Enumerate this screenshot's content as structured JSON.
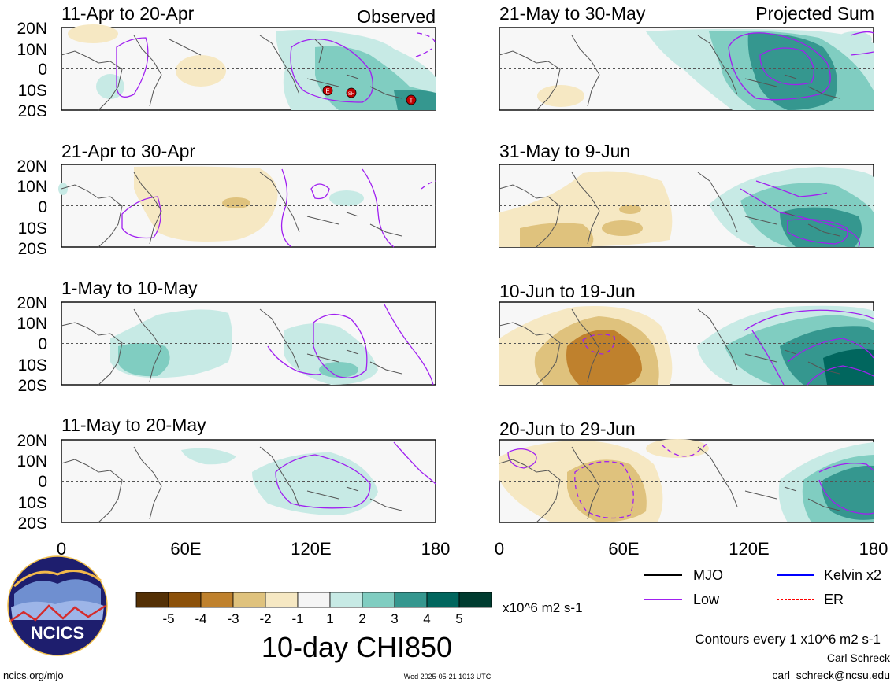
{
  "tags": {
    "observed": "Observed",
    "projected": "Projected Sum"
  },
  "panels_left": [
    {
      "title": "11-Apr to 20-Apr"
    },
    {
      "title": "21-Apr to 30-Apr"
    },
    {
      "title": "1-May to 10-May"
    },
    {
      "title": "11-May to 20-May"
    }
  ],
  "panels_right": [
    {
      "title": "21-May to 30-May"
    },
    {
      "title": "31-May to 9-Jun"
    },
    {
      "title": "10-Jun to 19-Jun"
    },
    {
      "title": "20-Jun to 29-Jun"
    }
  ],
  "lat_labels": [
    "20N",
    "10N",
    "0",
    "10S",
    "20S"
  ],
  "lon_labels": [
    "0",
    "60E",
    "120E",
    "180"
  ],
  "markers": [
    {
      "label": "E",
      "lon": 128,
      "lat": -10
    },
    {
      "label": "SH",
      "lon": 139,
      "lat": -11
    },
    {
      "label": "T",
      "lon": 168,
      "lat": -15
    }
  ],
  "colorbar": {
    "tick_labels": [
      "-5",
      "-4",
      "-3",
      "-2",
      "-1",
      "1",
      "2",
      "3",
      "4",
      "5"
    ],
    "colors": [
      "#543005",
      "#8c510a",
      "#bf812d",
      "#dfc27d",
      "#f6e8c3",
      "#f5f5f5",
      "#c7eae5",
      "#80cdc1",
      "#35978f",
      "#01665e",
      "#003c30"
    ],
    "units": "x10^6 m2 s-1",
    "title": "10-day CHI850"
  },
  "legend": [
    {
      "label": "MJO",
      "color": "#000000",
      "style": "solid"
    },
    {
      "label": "Kelvin x2",
      "color": "#0000ff",
      "style": "solid"
    },
    {
      "label": "Low",
      "color": "#a020f0",
      "style": "solid"
    },
    {
      "label": "ER",
      "color": "#ff0000",
      "style": "dashed"
    }
  ],
  "contour_note": "Contours every 1 x10^6 m2 s-1",
  "author": "Carl Schreck",
  "email": "carl_schreck@ncsu.edu",
  "site": "ncics.org/mjo",
  "timestamp": "Wed 2025-05-21 1013 UTC",
  "logo": {
    "text": "NCICS"
  },
  "chart_data": {
    "type": "heatmap",
    "variable": "10-day CHI850",
    "units": "x10^6 m2 s-1",
    "xlim": [
      0,
      180
    ],
    "ylim": [
      -20,
      20
    ],
    "color_levels": [
      -5,
      -4,
      -3,
      -2,
      -1,
      1,
      2,
      3,
      4,
      5
    ],
    "panels": [
      {
        "title": "11-Apr to 20-Apr",
        "tag": "Observed",
        "blobs": [
          {
            "lon": 28,
            "lat": 18,
            "v": -1
          },
          {
            "lon": 62,
            "lat": 2,
            "v": -1.3
          },
          {
            "lon": 135,
            "lat": 5,
            "v": 1.6
          },
          {
            "lon": 145,
            "lat": -10,
            "v": 2.2
          },
          {
            "lon": 170,
            "lat": -15,
            "v": 3.4
          },
          {
            "lon": 140,
            "lat": 15,
            "v": 1.2
          },
          {
            "lon": 45,
            "lat": -5,
            "v": 1.2
          }
        ]
      },
      {
        "title": "21-Apr to 30-Apr",
        "blobs": [
          {
            "lon": 50,
            "lat": 3,
            "v": -1.4
          },
          {
            "lon": 80,
            "lat": 2,
            "v": -2.1
          },
          {
            "lon": 100,
            "lat": 8,
            "v": -1.1
          },
          {
            "lon": 140,
            "lat": 3,
            "v": 1.2
          },
          {
            "lon": 2,
            "lat": 12,
            "v": 1.1
          }
        ]
      },
      {
        "title": "1-May to 10-May",
        "blobs": [
          {
            "lon": 40,
            "lat": -8,
            "v": 2.1
          },
          {
            "lon": 60,
            "lat": 5,
            "v": 1.3
          },
          {
            "lon": 72,
            "lat": 15,
            "v": 1.2
          },
          {
            "lon": 140,
            "lat": -5,
            "v": 1.6
          },
          {
            "lon": 125,
            "lat": 12,
            "v": 1.2
          }
        ]
      },
      {
        "title": "11-May to 20-May",
        "blobs": [
          {
            "lon": 70,
            "lat": 14,
            "v": 1.1
          },
          {
            "lon": 100,
            "lat": -8,
            "v": 1.3
          },
          {
            "lon": 135,
            "lat": 5,
            "v": 1.7
          },
          {
            "lon": 150,
            "lat": -10,
            "v": 1.3
          }
        ]
      },
      {
        "title": "21-May to 30-May",
        "tag": "Projected Sum",
        "blobs": [
          {
            "lon": 40,
            "lat": -12,
            "v": -1.3
          },
          {
            "lon": 130,
            "lat": 5,
            "v": 2.2
          },
          {
            "lon": 150,
            "lat": 5,
            "v": 3.3
          },
          {
            "lon": 165,
            "lat": -5,
            "v": 2.2
          },
          {
            "lon": 75,
            "lat": 15,
            "v": 1.1
          },
          {
            "lon": 175,
            "lat": 15,
            "v": 1.2
          }
        ]
      },
      {
        "title": "31-May to 9-Jun",
        "blobs": [
          {
            "lon": 25,
            "lat": -15,
            "v": -1.4
          },
          {
            "lon": 50,
            "lat": -5,
            "v": -1.6
          },
          {
            "lon": 55,
            "lat": -10,
            "v": -2.3
          },
          {
            "lon": 50,
            "lat": 5,
            "v": -1.4
          },
          {
            "lon": 145,
            "lat": -5,
            "v": 2.3
          },
          {
            "lon": 160,
            "lat": -5,
            "v": 3.4
          },
          {
            "lon": 170,
            "lat": 10,
            "v": 1.2
          }
        ]
      },
      {
        "title": "10-Jun to 19-Jun",
        "blobs": [
          {
            "lon": 45,
            "lat": -5,
            "v": -3.3
          },
          {
            "lon": 55,
            "lat": 0,
            "v": -3.4
          },
          {
            "lon": 30,
            "lat": -10,
            "v": -1.8
          },
          {
            "lon": 65,
            "lat": 10,
            "v": -1.6
          },
          {
            "lon": 140,
            "lat": 0,
            "v": 2.3
          },
          {
            "lon": 165,
            "lat": -8,
            "v": 3.4
          },
          {
            "lon": 175,
            "lat": 12,
            "v": 2.1
          }
        ]
      },
      {
        "title": "20-Jun to 29-Jun",
        "blobs": [
          {
            "lon": 50,
            "lat": -2,
            "v": -2.3
          },
          {
            "lon": 30,
            "lat": 10,
            "v": -1.3
          },
          {
            "lon": 75,
            "lat": 12,
            "v": -1.2
          },
          {
            "lon": 160,
            "lat": 0,
            "v": 2.2
          },
          {
            "lon": 170,
            "lat": -5,
            "v": 3.4
          }
        ]
      }
    ]
  }
}
